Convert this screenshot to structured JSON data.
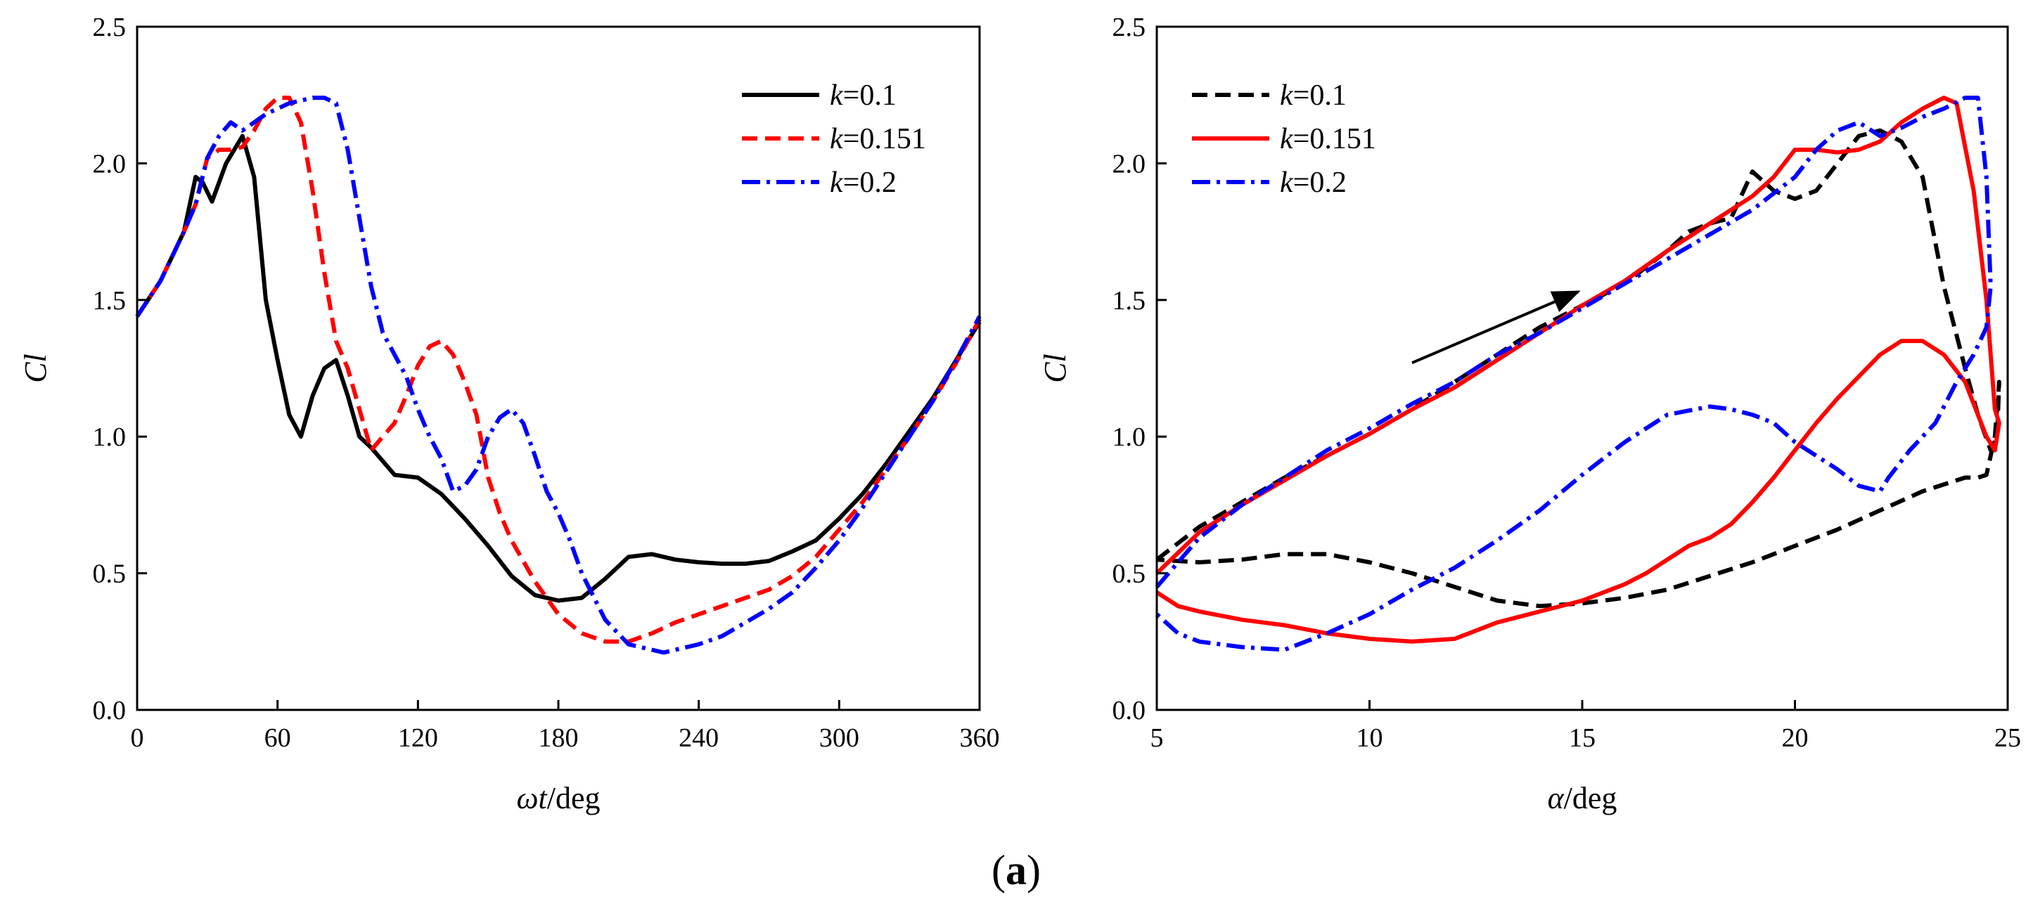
{
  "caption": {
    "open": "(",
    "letter": "a",
    "close": ")"
  },
  "colors": {
    "k01": "#000000",
    "k0151": "#ff0000",
    "k02": "#0000ff"
  },
  "chart_data": [
    {
      "type": "line",
      "xlabel": {
        "italic": "ωt",
        "rest": "/deg"
      },
      "ylabel": "Cl",
      "xlim": [
        0,
        360
      ],
      "ylim": [
        0,
        2.5
      ],
      "xticks": [
        "0",
        "60",
        "120",
        "180",
        "240",
        "300",
        "360"
      ],
      "yticks": [
        "0.0",
        "0.5",
        "1.0",
        "1.5",
        "2.0",
        "2.5"
      ],
      "legend_position": "top-right",
      "series": [
        {
          "name": "k=0.1",
          "label_italic": "k",
          "label_rest": "=0.1",
          "style": "solid",
          "color": "#000000",
          "x": [
            0,
            10,
            20,
            25,
            28,
            32,
            38,
            45,
            50,
            55,
            60,
            65,
            70,
            75,
            80,
            85,
            90,
            95,
            100,
            110,
            120,
            130,
            140,
            150,
            160,
            170,
            180,
            190,
            200,
            210,
            220,
            230,
            240,
            250,
            260,
            270,
            280,
            290,
            300,
            310,
            320,
            330,
            340,
            350,
            360
          ],
          "y": [
            1.44,
            1.57,
            1.75,
            1.95,
            1.93,
            1.86,
            2.0,
            2.1,
            1.95,
            1.5,
            1.28,
            1.08,
            1.0,
            1.15,
            1.25,
            1.28,
            1.15,
            1.0,
            0.96,
            0.86,
            0.85,
            0.79,
            0.7,
            0.6,
            0.49,
            0.42,
            0.4,
            0.41,
            0.48,
            0.56,
            0.57,
            0.55,
            0.54,
            0.535,
            0.535,
            0.545,
            0.58,
            0.62,
            0.7,
            0.79,
            0.9,
            1.02,
            1.14,
            1.28,
            1.42
          ]
        },
        {
          "name": "k=0.151",
          "label_italic": "k",
          "label_rest": "=0.151",
          "style": "dashed",
          "color": "#ff0000",
          "x": [
            0,
            10,
            20,
            25,
            30,
            35,
            40,
            45,
            50,
            55,
            60,
            65,
            70,
            75,
            80,
            85,
            90,
            95,
            100,
            105,
            110,
            115,
            120,
            125,
            130,
            135,
            140,
            145,
            150,
            155,
            160,
            170,
            180,
            190,
            200,
            210,
            220,
            230,
            240,
            250,
            260,
            270,
            280,
            290,
            300,
            310,
            320,
            330,
            340,
            350,
            360
          ],
          "y": [
            1.44,
            1.57,
            1.75,
            1.85,
            2.02,
            2.05,
            2.05,
            2.06,
            2.12,
            2.2,
            2.24,
            2.24,
            2.15,
            1.9,
            1.6,
            1.35,
            1.25,
            1.1,
            0.95,
            1.0,
            1.05,
            1.15,
            1.26,
            1.33,
            1.35,
            1.3,
            1.2,
            1.08,
            0.85,
            0.72,
            0.62,
            0.47,
            0.35,
            0.28,
            0.25,
            0.25,
            0.28,
            0.32,
            0.35,
            0.38,
            0.41,
            0.44,
            0.49,
            0.56,
            0.66,
            0.76,
            0.88,
            1.0,
            1.13,
            1.27,
            1.43
          ]
        },
        {
          "name": "k=0.2",
          "label_italic": "k",
          "label_rest": "=0.2",
          "style": "dashdot",
          "color": "#0000ff",
          "x": [
            0,
            10,
            20,
            25,
            30,
            35,
            40,
            45,
            50,
            55,
            60,
            65,
            70,
            75,
            80,
            85,
            90,
            95,
            100,
            105,
            110,
            115,
            120,
            125,
            130,
            135,
            140,
            145,
            150,
            155,
            160,
            165,
            170,
            175,
            180,
            185,
            190,
            200,
            210,
            220,
            225,
            230,
            240,
            250,
            260,
            270,
            280,
            290,
            300,
            310,
            320,
            330,
            340,
            350,
            360
          ],
          "y": [
            1.44,
            1.57,
            1.75,
            1.85,
            2.02,
            2.1,
            2.15,
            2.12,
            2.15,
            2.18,
            2.2,
            2.22,
            2.23,
            2.24,
            2.24,
            2.22,
            2.05,
            1.8,
            1.55,
            1.38,
            1.3,
            1.22,
            1.1,
            1.0,
            0.92,
            0.8,
            0.82,
            0.88,
            1.0,
            1.07,
            1.1,
            1.05,
            0.93,
            0.8,
            0.72,
            0.62,
            0.5,
            0.33,
            0.24,
            0.22,
            0.21,
            0.22,
            0.24,
            0.27,
            0.32,
            0.37,
            0.43,
            0.52,
            0.62,
            0.74,
            0.87,
            1.0,
            1.13,
            1.28,
            1.44
          ]
        }
      ]
    },
    {
      "type": "line",
      "xlabel": {
        "italic": "α",
        "rest": "/deg"
      },
      "ylabel": "Cl",
      "xlim": [
        5,
        25
      ],
      "ylim": [
        0,
        2.5
      ],
      "xticks": [
        "5",
        "10",
        "15",
        "20",
        "25"
      ],
      "yticks": [
        "0.0",
        "0.5",
        "1.0",
        "1.5",
        "2.0",
        "2.5"
      ],
      "legend_position": "top-left",
      "annotation": {
        "type": "arrow",
        "from": [
          11,
          1.27
        ],
        "to": [
          14.9,
          1.53
        ]
      },
      "series": [
        {
          "name": "k=0.1",
          "label_italic": "k",
          "label_rest": "=0.1",
          "style": "dashed",
          "color": "#000000",
          "x": [
            5,
            6,
            7,
            8,
            9,
            10,
            11,
            12,
            13,
            14,
            15,
            16,
            17,
            17.5,
            18,
            18.5,
            19,
            19.5,
            20,
            20.5,
            21,
            21.5,
            22,
            22.5,
            23,
            23.5,
            24,
            24.3,
            24.6,
            24.75,
            24.8,
            24.7,
            24.5,
            24.3,
            24,
            23,
            22,
            21,
            20,
            19,
            18,
            17,
            16,
            15,
            14,
            13,
            12,
            11,
            10,
            9,
            8,
            7,
            6,
            5
          ],
          "y": [
            0.55,
            0.67,
            0.76,
            0.85,
            0.93,
            1.01,
            1.1,
            1.2,
            1.3,
            1.4,
            1.48,
            1.56,
            1.68,
            1.75,
            1.78,
            1.8,
            1.97,
            1.9,
            1.87,
            1.9,
            2.0,
            2.1,
            2.12,
            2.08,
            1.95,
            1.55,
            1.25,
            1.08,
            0.95,
            1.0,
            1.2,
            1.0,
            0.86,
            0.85,
            0.85,
            0.8,
            0.73,
            0.66,
            0.6,
            0.54,
            0.49,
            0.44,
            0.41,
            0.39,
            0.38,
            0.4,
            0.45,
            0.5,
            0.54,
            0.57,
            0.57,
            0.55,
            0.54,
            0.55
          ]
        },
        {
          "name": "k=0.151",
          "label_italic": "k",
          "label_rest": "=0.151",
          "style": "solid",
          "color": "#ff0000",
          "x": [
            5,
            6,
            7,
            8,
            9,
            10,
            11,
            12,
            13,
            14,
            15,
            16,
            17,
            18,
            19,
            19.5,
            20,
            20.5,
            21,
            21.5,
            22,
            22.5,
            23,
            23.5,
            23.8,
            24.2,
            24.5,
            24.7,
            24.8,
            24.7,
            24.5,
            24,
            23.5,
            23,
            22.5,
            22,
            21.5,
            21,
            20.5,
            20,
            19.5,
            19,
            18.5,
            18,
            17.5,
            17,
            16.5,
            16,
            15.5,
            15,
            14,
            13,
            12,
            11,
            10,
            9,
            8,
            7,
            6,
            5.5,
            5
          ],
          "y": [
            0.5,
            0.65,
            0.75,
            0.84,
            0.93,
            1.01,
            1.1,
            1.18,
            1.28,
            1.38,
            1.48,
            1.57,
            1.68,
            1.78,
            1.88,
            1.95,
            2.05,
            2.05,
            2.04,
            2.05,
            2.08,
            2.15,
            2.2,
            2.24,
            2.22,
            1.9,
            1.5,
            1.1,
            1.05,
            0.95,
            1.0,
            1.2,
            1.3,
            1.35,
            1.35,
            1.3,
            1.22,
            1.14,
            1.05,
            0.95,
            0.85,
            0.76,
            0.68,
            0.63,
            0.6,
            0.55,
            0.5,
            0.46,
            0.43,
            0.4,
            0.36,
            0.32,
            0.26,
            0.25,
            0.26,
            0.28,
            0.31,
            0.33,
            0.36,
            0.38,
            0.43
          ]
        },
        {
          "name": "k=0.2",
          "label_italic": "k",
          "label_rest": "=0.2",
          "style": "dashdot",
          "color": "#0000ff",
          "x": [
            5,
            6,
            7,
            8,
            9,
            10,
            11,
            12,
            13,
            14,
            15,
            16,
            17,
            18,
            19,
            20,
            20.5,
            21,
            21.5,
            22,
            22.5,
            23,
            23.5,
            24,
            24.3,
            24.5,
            24.6,
            24.5,
            24.2,
            23.8,
            23.3,
            22.7,
            22.2,
            22,
            21.5,
            21,
            20.5,
            20,
            19.5,
            19,
            18.5,
            18,
            17,
            16,
            15,
            14,
            13,
            12,
            11,
            10,
            9,
            8,
            7,
            6,
            5.5,
            5
          ],
          "y": [
            0.45,
            0.63,
            0.75,
            0.85,
            0.95,
            1.03,
            1.12,
            1.2,
            1.3,
            1.38,
            1.47,
            1.56,
            1.65,
            1.74,
            1.83,
            1.95,
            2.05,
            2.12,
            2.15,
            2.1,
            2.13,
            2.17,
            2.2,
            2.24,
            2.24,
            1.95,
            1.55,
            1.4,
            1.3,
            1.2,
            1.05,
            0.95,
            0.85,
            0.8,
            0.82,
            0.88,
            0.93,
            0.98,
            1.05,
            1.08,
            1.1,
            1.11,
            1.08,
            0.98,
            0.86,
            0.73,
            0.62,
            0.52,
            0.44,
            0.35,
            0.28,
            0.22,
            0.23,
            0.25,
            0.28,
            0.35
          ]
        }
      ]
    }
  ]
}
